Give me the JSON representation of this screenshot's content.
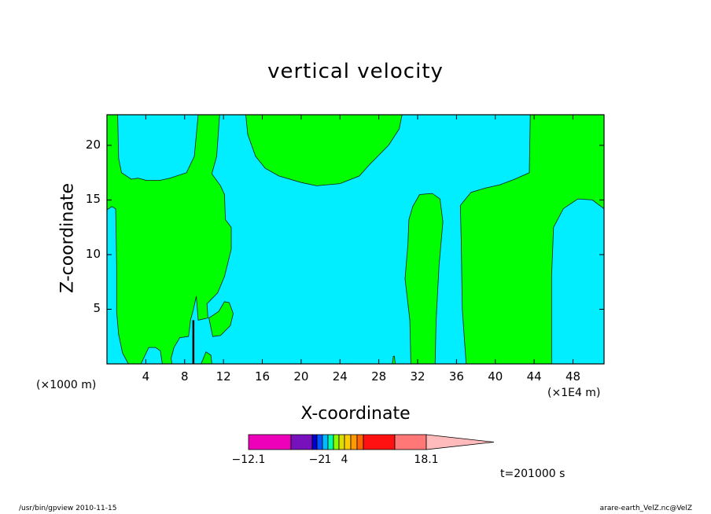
{
  "chart_data": {
    "type": "heatmap",
    "title": "vertical velocity",
    "xlabel": "X-coordinate",
    "ylabel": "Z-coordinate",
    "x_unit_left": "(×1000 m)",
    "x_unit_right": "(×1E4 m)",
    "xlim": [
      0,
      51.2
    ],
    "ylim": [
      0,
      22.8
    ],
    "x_ticks": [
      4,
      8,
      12,
      16,
      20,
      24,
      28,
      32,
      36,
      40,
      44,
      48
    ],
    "y_ticks": [
      5,
      10,
      15,
      20
    ],
    "background_color": "#00eeff",
    "regions": [
      {
        "color": "#00ff00",
        "points": [
          [
            0,
            22.8
          ],
          [
            1.1,
            22.8
          ],
          [
            1.2,
            18.8
          ],
          [
            1.5,
            17.5
          ],
          [
            2.5,
            16.9
          ],
          [
            3.2,
            17.0
          ],
          [
            4.0,
            16.8
          ],
          [
            5.5,
            16.8
          ],
          [
            6.5,
            17.0
          ],
          [
            8.2,
            17.5
          ],
          [
            9.0,
            19.0
          ],
          [
            9.4,
            22.8
          ],
          [
            11.6,
            22.8
          ],
          [
            11.3,
            19.0
          ],
          [
            10.8,
            17.4
          ],
          [
            11.7,
            16.3
          ],
          [
            12.1,
            15.5
          ],
          [
            12.2,
            13.2
          ],
          [
            12.8,
            12.5
          ],
          [
            12.8,
            10.5
          ],
          [
            12.1,
            8.0
          ],
          [
            11.4,
            6.5
          ],
          [
            10.3,
            5.5
          ],
          [
            10.4,
            4.2
          ],
          [
            9.4,
            4.0
          ],
          [
            9.2,
            6.2
          ],
          [
            8.9,
            5.0
          ],
          [
            8.6,
            4.0
          ],
          [
            8.4,
            2.5
          ],
          [
            7.5,
            2.4
          ],
          [
            6.9,
            1.5
          ],
          [
            6.6,
            0.5
          ],
          [
            6.7,
            0
          ],
          [
            5.7,
            0
          ],
          [
            5.5,
            1.2
          ],
          [
            5.0,
            1.5
          ],
          [
            4.3,
            1.5
          ],
          [
            3.5,
            0
          ],
          [
            2.2,
            0
          ],
          [
            1.6,
            1.0
          ],
          [
            1.2,
            2.7
          ],
          [
            1.0,
            4.8
          ],
          [
            1.0,
            9.0
          ],
          [
            0.9,
            14.2
          ],
          [
            0.5,
            14.4
          ],
          [
            0,
            14.1
          ]
        ]
      },
      {
        "color": "#00ff00",
        "points": [
          [
            10.5,
            4.2
          ],
          [
            11.5,
            4.8
          ],
          [
            12.1,
            5.7
          ],
          [
            12.6,
            5.6
          ],
          [
            13.0,
            4.6
          ],
          [
            12.7,
            3.5
          ],
          [
            11.7,
            2.6
          ],
          [
            10.9,
            2.5
          ]
        ]
      },
      {
        "color": "#00ff00",
        "points": [
          [
            9.7,
            0
          ],
          [
            10.2,
            1.1
          ],
          [
            10.7,
            0.8
          ],
          [
            10.8,
            0
          ]
        ]
      },
      {
        "color": "#00ff00",
        "points": [
          [
            14.3,
            22.8
          ],
          [
            14.5,
            21.0
          ],
          [
            15.3,
            19.0
          ],
          [
            16.3,
            17.9
          ],
          [
            17.7,
            17.2
          ],
          [
            20.0,
            16.6
          ],
          [
            21.6,
            16.3
          ],
          [
            24.0,
            16.5
          ],
          [
            26.0,
            17.2
          ],
          [
            27.0,
            18.2
          ],
          [
            29.0,
            20.0
          ],
          [
            30.1,
            21.5
          ],
          [
            30.4,
            22.8
          ]
        ]
      },
      {
        "color": "#00ff00",
        "points": [
          [
            31.3,
            0
          ],
          [
            31.2,
            4.0
          ],
          [
            30.7,
            7.8
          ],
          [
            31.0,
            11.0
          ],
          [
            31.1,
            13.2
          ],
          [
            31.5,
            14.4
          ],
          [
            32.2,
            15.5
          ],
          [
            33.5,
            15.6
          ],
          [
            34.3,
            15.1
          ],
          [
            34.6,
            13.0
          ],
          [
            34.2,
            9.0
          ],
          [
            33.9,
            4.0
          ],
          [
            33.8,
            0
          ]
        ]
      },
      {
        "color": "#00ff00",
        "points": [
          [
            37.0,
            0
          ],
          [
            36.6,
            5.0
          ],
          [
            36.5,
            11.0
          ],
          [
            36.4,
            14.5
          ],
          [
            37.5,
            15.7
          ],
          [
            39.0,
            16.1
          ],
          [
            40.5,
            16.4
          ],
          [
            42.0,
            16.9
          ],
          [
            43.5,
            17.5
          ],
          [
            43.6,
            22.8
          ],
          [
            51.2,
            22.8
          ],
          [
            51.2,
            14.2
          ],
          [
            50.0,
            15.0
          ],
          [
            48.5,
            15.1
          ],
          [
            47.0,
            14.2
          ],
          [
            46.0,
            12.5
          ],
          [
            45.8,
            8.0
          ],
          [
            45.8,
            0
          ]
        ]
      },
      {
        "color": "#00ff00",
        "points": [
          [
            29.4,
            0
          ],
          [
            29.5,
            0.7
          ],
          [
            29.6,
            0.7
          ],
          [
            29.7,
            0
          ]
        ]
      }
    ],
    "spike": {
      "x": 8.9,
      "y_top": 4.0,
      "color": "#000000"
    },
    "colorbar": {
      "colors": [
        "#ee00bb",
        "#7711bb",
        "#0000cc",
        "#0055ff",
        "#00bbff",
        "#00ffaa",
        "#88ff00",
        "#dddd00",
        "#ffcc00",
        "#ff9900",
        "#ff6600",
        "#ff1111",
        "#ff7777",
        "#ffbbbb"
      ],
      "labels": [
        {
          "text": "−12.1",
          "index": 0
        },
        {
          "text": "−2",
          "index": 3
        },
        {
          "text": "1",
          "index": 5
        },
        {
          "text": "4",
          "index": 8
        },
        {
          "text": "18.1",
          "index": 13
        }
      ]
    },
    "time_label": "t=201000 s"
  },
  "footer": {
    "left": "/usr/bin/gpview   2010-11-15",
    "right": "arare-earth_VelZ.nc@VelZ"
  }
}
